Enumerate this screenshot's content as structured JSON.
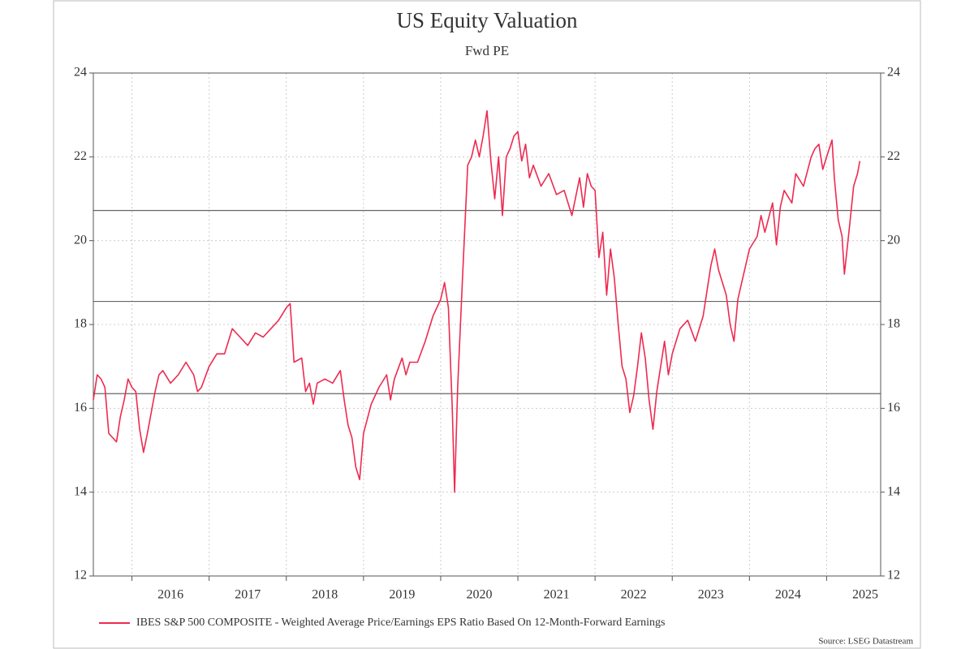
{
  "chart_data": {
    "type": "line",
    "title": "US Equity Valuation",
    "subtitle": "Fwd PE",
    "source": "Source: LSEG Datastream",
    "series": [
      {
        "name": "IBES S&P 500 COMPOSITE - Weighted Average Price/Earnings EPS Ratio Based On 12-Month-Forward Earnings",
        "color": "#ee2a50",
        "values": [
          16.2,
          16.8,
          16.7,
          16.5,
          15.4,
          15.3,
          15.2,
          15.8,
          16.2,
          16.7,
          16.5,
          16.4,
          15.5,
          14.95,
          15.4,
          15.9,
          16.4,
          16.8,
          16.9,
          16.6,
          16.8,
          17.1,
          16.8,
          16.4,
          16.5,
          17.0,
          17.3,
          17.3,
          17.6,
          17.9,
          17.7,
          17.5,
          17.8,
          17.7,
          17.9,
          18.1,
          18.4,
          18.5,
          17.1,
          17.2,
          16.4,
          16.6,
          16.1,
          16.6,
          16.7,
          16.6,
          16.9,
          16.2,
          15.6,
          15.3,
          14.6,
          14.3,
          15.4,
          16.1,
          16.5,
          16.8,
          16.2,
          16.7,
          17.2,
          16.8,
          17.1,
          17.1,
          17.6,
          18.2,
          18.6,
          19.0,
          18.4,
          16.0,
          14.0,
          16.5,
          19.0,
          20.6,
          21.8,
          22.0,
          22.4,
          22.0,
          22.5,
          23.1,
          21.9,
          21.0,
          22.0,
          20.6,
          22.0,
          22.2,
          22.5,
          22.6,
          21.9,
          22.3,
          21.5,
          21.8,
          21.3,
          21.6,
          21.1,
          21.2,
          20.6,
          21.5,
          20.8,
          21.6,
          21.3,
          21.2,
          19.6,
          20.2,
          18.7,
          19.8,
          19.1,
          18.0,
          17.0,
          16.7,
          15.9,
          16.3,
          17.0,
          17.8,
          17.2,
          16.2,
          15.5,
          16.4,
          17.6,
          16.8,
          17.3,
          17.9,
          18.1,
          17.6,
          18.2,
          18.8,
          19.4,
          19.8,
          19.3,
          18.7,
          18.0,
          17.6,
          18.6,
          19.0,
          19.8,
          20.1,
          20.6,
          20.2,
          20.9,
          19.9,
          20.8,
          21.2,
          20.9,
          21.6,
          21.3,
          22.0,
          22.2,
          22.3,
          21.7,
          22.0,
          22.4,
          21.5,
          20.5,
          20.1,
          19.2,
          20.4,
          21.3,
          21.6,
          21.9
        ]
      }
    ],
    "x": [
      2015.5,
      2015.55,
      2015.6,
      2015.65,
      2015.7,
      2015.75,
      2015.8,
      2015.85,
      2015.9,
      2015.95,
      2016.0,
      2016.05,
      2016.1,
      2016.15,
      2016.2,
      2016.25,
      2016.3,
      2016.35,
      2016.4,
      2016.5,
      2016.6,
      2016.7,
      2016.8,
      2016.85,
      2016.9,
      2017.0,
      2017.1,
      2017.2,
      2017.25,
      2017.3,
      2017.4,
      2017.5,
      2017.6,
      2017.7,
      2017.8,
      2017.9,
      2018.0,
      2018.05,
      2018.1,
      2018.2,
      2018.25,
      2018.3,
      2018.35,
      2018.4,
      2018.5,
      2018.6,
      2018.7,
      2018.75,
      2018.8,
      2018.85,
      2018.9,
      2018.95,
      2019.0,
      2019.1,
      2019.2,
      2019.3,
      2019.35,
      2019.4,
      2019.5,
      2019.55,
      2019.6,
      2019.7,
      2019.8,
      2019.9,
      2020.0,
      2020.05,
      2020.1,
      2020.15,
      2020.18,
      2020.22,
      2020.28,
      2020.32,
      2020.35,
      2020.4,
      2020.45,
      2020.5,
      2020.55,
      2020.6,
      2020.65,
      2020.7,
      2020.75,
      2020.8,
      2020.85,
      2020.9,
      2020.95,
      2021.0,
      2021.05,
      2021.1,
      2021.15,
      2021.2,
      2021.3,
      2021.4,
      2021.5,
      2021.6,
      2021.7,
      2021.8,
      2021.85,
      2021.9,
      2021.95,
      2022.0,
      2022.05,
      2022.1,
      2022.15,
      2022.2,
      2022.25,
      2022.3,
      2022.35,
      2022.4,
      2022.45,
      2022.5,
      2022.55,
      2022.6,
      2022.65,
      2022.7,
      2022.75,
      2022.8,
      2022.9,
      2022.95,
      2023.0,
      2023.1,
      2023.2,
      2023.3,
      2023.4,
      2023.45,
      2023.5,
      2023.55,
      2023.6,
      2023.7,
      2023.75,
      2023.8,
      2023.85,
      2023.9,
      2024.0,
      2024.1,
      2024.15,
      2024.2,
      2024.3,
      2024.35,
      2024.4,
      2024.45,
      2024.55,
      2024.6,
      2024.7,
      2024.8,
      2024.85,
      2024.9,
      2024.95,
      2025.0,
      2025.07,
      2025.1,
      2025.15,
      2025.2,
      2025.23,
      2025.3,
      2025.35,
      2025.4,
      2025.43
    ],
    "xlim": [
      2015.5,
      2025.7
    ],
    "xticks": [
      2016,
      2017,
      2018,
      2019,
      2020,
      2021,
      2022,
      2023,
      2024,
      2025
    ],
    "ylim": [
      12,
      24
    ],
    "yticks": [
      12,
      14,
      16,
      18,
      20,
      22,
      24
    ],
    "grid": true,
    "reference_lines": [
      20.72,
      18.55,
      16.35
    ],
    "legend": "bottom"
  }
}
